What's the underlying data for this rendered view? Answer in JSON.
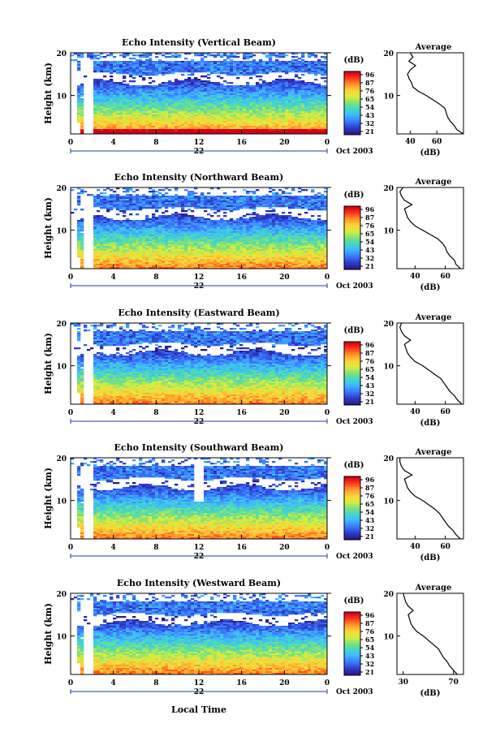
{
  "figure": {
    "x_axis_label": "Local Time",
    "date_label": "Oct 2003",
    "colorbar_unit": "(dB)",
    "colorbar_ticks": [
      96,
      87,
      76,
      65,
      54,
      43,
      32,
      21
    ],
    "colorscale": [
      "#2a1a8c",
      "#2f3fd0",
      "#3a7bff",
      "#41b6ff",
      "#3fd9c8",
      "#7fe07a",
      "#d6ef3c",
      "#ffd23a",
      "#ff9a2a",
      "#ff3b1c",
      "#d4001a"
    ],
    "y_axis_label": "Height (km)",
    "y_ticks": [
      10,
      20
    ],
    "x_ticks": [
      "0",
      "4",
      "8",
      "12",
      "16",
      "20",
      "0"
    ],
    "day_label": "22",
    "average_title": "Average",
    "average_xlabel": "(dB)"
  },
  "chart_data": [
    {
      "type": "heatmap",
      "title": "Echo Intensity (Vertical Beam)",
      "ylabel": "Height (km)",
      "xlabel": "Local Time",
      "xlim": [
        0,
        24
      ],
      "ylim": [
        1,
        20
      ],
      "colorbar": {
        "label": "(dB)",
        "ticks": [
          96,
          87,
          76,
          65,
          54,
          43,
          32,
          21
        ]
      },
      "profile": {
        "title": "Average",
        "xlabel": "(dB)",
        "xlim": [
          30,
          80
        ],
        "xticks": [
          40,
          60
        ],
        "height": [
          1,
          2,
          3,
          4,
          5,
          6,
          7,
          8,
          9,
          10,
          11,
          12,
          13,
          14,
          15,
          16,
          17,
          18,
          19,
          20
        ],
        "value": [
          80,
          75,
          73,
          70,
          68,
          67,
          66,
          62,
          57,
          52,
          46,
          42,
          41,
          39,
          38,
          40,
          44,
          39,
          42,
          40
        ]
      }
    },
    {
      "type": "heatmap",
      "title": "Echo Intensity (Northward Beam)",
      "ylabel": "Height (km)",
      "xlabel": "Local Time",
      "xlim": [
        0,
        24
      ],
      "ylim": [
        1,
        20
      ],
      "colorbar": {
        "label": "(dB)",
        "ticks": [
          96,
          87,
          76,
          65,
          54,
          43,
          32,
          21
        ]
      },
      "profile": {
        "title": "Average",
        "xlabel": "(dB)",
        "xlim": [
          28,
          72
        ],
        "xticks": [
          40,
          60
        ],
        "height": [
          1,
          2,
          3,
          4,
          5,
          6,
          7,
          8,
          9,
          10,
          11,
          12,
          13,
          14,
          15,
          16,
          17,
          18,
          19,
          20
        ],
        "value": [
          70,
          67,
          66,
          63,
          61,
          60,
          58,
          55,
          50,
          45,
          40,
          37,
          35,
          34,
          33,
          38,
          33,
          31,
          30,
          32
        ]
      }
    },
    {
      "type": "heatmap",
      "title": "Echo Intensity (Eastward Beam)",
      "ylabel": "Height (km)",
      "xlabel": "Local Time",
      "xlim": [
        0,
        24
      ],
      "ylim": [
        1,
        20
      ],
      "colorbar": {
        "label": "(dB)",
        "ticks": [
          96,
          87,
          76,
          65,
          54,
          43,
          32,
          21
        ]
      },
      "profile": {
        "title": "Average",
        "xlabel": "(dB)",
        "xlim": [
          28,
          72
        ],
        "xticks": [
          40,
          60
        ],
        "height": [
          1,
          2,
          3,
          4,
          5,
          6,
          7,
          8,
          9,
          10,
          11,
          12,
          13,
          14,
          15,
          16,
          17,
          18,
          19,
          20
        ],
        "value": [
          71,
          68,
          66,
          63,
          61,
          59,
          57,
          53,
          49,
          45,
          40,
          37,
          35,
          34,
          33,
          37,
          33,
          31,
          30,
          31
        ]
      }
    },
    {
      "type": "heatmap",
      "title": "Echo Intensity (Southward Beam)",
      "ylabel": "Height (km)",
      "xlabel": "Local Time",
      "xlim": [
        0,
        24
      ],
      "ylim": [
        1,
        20
      ],
      "colorbar": {
        "label": "(dB)",
        "ticks": [
          96,
          87,
          76,
          65,
          54,
          43,
          32,
          21
        ]
      },
      "profile": {
        "title": "Average",
        "xlabel": "(dB)",
        "xlim": [
          28,
          72
        ],
        "xticks": [
          40,
          60
        ],
        "height": [
          1,
          2,
          3,
          4,
          5,
          6,
          7,
          8,
          9,
          10,
          11,
          12,
          13,
          14,
          15,
          16,
          17,
          18,
          19,
          20
        ],
        "value": [
          70,
          67,
          65,
          62,
          60,
          58,
          56,
          53,
          49,
          45,
          40,
          37,
          35,
          34,
          33,
          38,
          33,
          31,
          30,
          30
        ]
      }
    },
    {
      "type": "heatmap",
      "title": "Echo Intensity (Westward Beam)",
      "ylabel": "Height (km)",
      "xlabel": "Local Time",
      "xlim": [
        0,
        24
      ],
      "ylim": [
        1,
        20
      ],
      "colorbar": {
        "label": "(dB)",
        "ticks": [
          96,
          87,
          76,
          65,
          54,
          43,
          32,
          21
        ]
      },
      "profile": {
        "title": "Average",
        "xlabel": "(dB)",
        "xlim": [
          25,
          78
        ],
        "xticks": [
          30,
          70
        ],
        "height": [
          1,
          2,
          3,
          4,
          5,
          6,
          7,
          8,
          9,
          10,
          11,
          12,
          13,
          14,
          15,
          16,
          17,
          18,
          19,
          20
        ],
        "value": [
          73,
          70,
          67,
          65,
          62,
          60,
          58,
          54,
          50,
          46,
          41,
          38,
          36,
          35,
          34,
          38,
          34,
          32,
          31,
          30
        ]
      }
    }
  ]
}
